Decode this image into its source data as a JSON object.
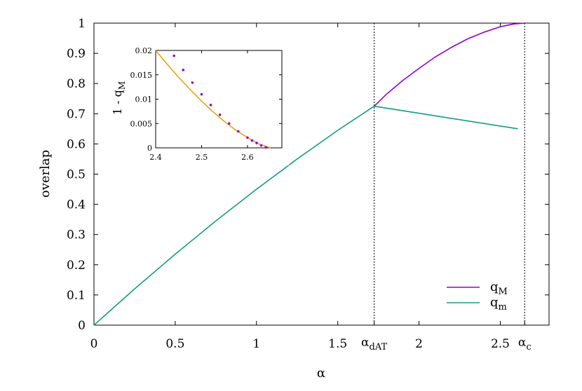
{
  "chart_data": [
    {
      "type": "line",
      "title": "",
      "xlabel": "α",
      "ylabel": "overlap",
      "xlim": [
        0,
        2.8
      ],
      "ylim": [
        0,
        1
      ],
      "grid": false,
      "legend_position": "bottom-right",
      "xticks": [
        {
          "v": 0,
          "l": "0"
        },
        {
          "v": 0.5,
          "l": "0.5"
        },
        {
          "v": 1,
          "l": "1"
        },
        {
          "v": 1.5,
          "l": "1.5"
        },
        {
          "v": 2,
          "l": "2"
        },
        {
          "v": 2.5,
          "l": "2.5"
        }
      ],
      "yticks": [
        {
          "v": 0,
          "l": "0"
        },
        {
          "v": 0.1,
          "l": "0.1"
        },
        {
          "v": 0.2,
          "l": "0.2"
        },
        {
          "v": 0.3,
          "l": "0.3"
        },
        {
          "v": 0.4,
          "l": "0.4"
        },
        {
          "v": 0.5,
          "l": "0.5"
        },
        {
          "v": 0.6,
          "l": "0.6"
        },
        {
          "v": 0.7,
          "l": "0.7"
        },
        {
          "v": 0.8,
          "l": "0.8"
        },
        {
          "v": 0.9,
          "l": "0.9"
        },
        {
          "v": 1,
          "l": "1"
        }
      ],
      "annotations": [
        {
          "x": 1.724,
          "label": "α",
          "sub": "dAT"
        },
        {
          "x": 2.65,
          "label": "α",
          "sub": "c"
        }
      ],
      "series": [
        {
          "name": "q",
          "sub": "M",
          "color": "#9400d3",
          "x": [
            1.724,
            1.8,
            1.9,
            2.0,
            2.1,
            2.2,
            2.3,
            2.4,
            2.5,
            2.58,
            2.65
          ],
          "y": [
            0.725,
            0.765,
            0.81,
            0.85,
            0.888,
            0.92,
            0.948,
            0.97,
            0.988,
            0.997,
            1.0
          ]
        },
        {
          "name": "q",
          "sub": "m",
          "color": "#159d82",
          "x": [
            0,
            0.25,
            0.5,
            0.75,
            1.0,
            1.25,
            1.5,
            1.724,
            2.608
          ],
          "y": [
            0,
            0.12,
            0.235,
            0.345,
            0.45,
            0.55,
            0.645,
            0.725,
            0.65
          ]
        }
      ]
    },
    {
      "type": "scatter+line",
      "ylabel": "1 - q",
      "ylabel_sub": "M",
      "xlim": [
        2.4,
        2.675
      ],
      "ylim": [
        0,
        0.02
      ],
      "xticks": [
        {
          "v": 2.4,
          "l": "2.4"
        },
        {
          "v": 2.5,
          "l": "2.5"
        },
        {
          "v": 2.6,
          "l": "2.6"
        }
      ],
      "yticks": [
        {
          "v": 0,
          "l": "0"
        },
        {
          "v": 0.005,
          "l": "0.005"
        },
        {
          "v": 0.01,
          "l": "0.01"
        },
        {
          "v": 0.015,
          "l": "0.015"
        },
        {
          "v": 0.02,
          "l": "0.02"
        }
      ],
      "points": {
        "color": "#9400d3",
        "x": [
          2.44,
          2.46,
          2.48,
          2.5,
          2.52,
          2.54,
          2.56,
          2.58,
          2.6,
          2.61,
          2.62,
          2.63,
          2.64
        ],
        "y": [
          0.0189,
          0.016,
          0.0134,
          0.011,
          0.0088,
          0.0068,
          0.005,
          0.0034,
          0.0021,
          0.0015,
          0.001,
          0.0005,
          0.0001
        ]
      },
      "curve": {
        "color": "#e69f00",
        "x": [
          2.4,
          2.425,
          2.45,
          2.475,
          2.5,
          2.525,
          2.55,
          2.575,
          2.6,
          2.625,
          2.65
        ],
        "y": [
          0.02,
          0.0172,
          0.0145,
          0.012,
          0.0096,
          0.0074,
          0.0054,
          0.0036,
          0.0021,
          0.0008,
          0
        ]
      }
    }
  ]
}
